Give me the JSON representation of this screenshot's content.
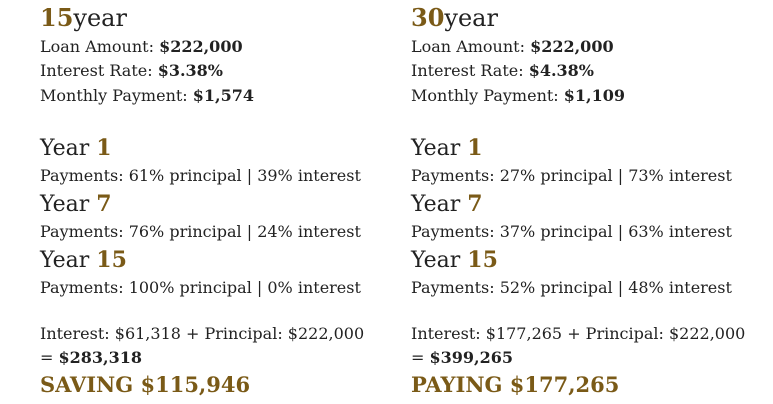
{
  "colors": {
    "accent": "#7a5a17",
    "text": "#222222"
  },
  "left": {
    "term_number": "15",
    "term_unit": "year",
    "loan_amount_label": "Loan Amount:",
    "loan_amount": "$222,000",
    "interest_rate_label": "Interest Rate:",
    "interest_rate": "$3.38%",
    "monthly_payment_label": "Monthly Payment:",
    "monthly_payment": "$1,574",
    "years": [
      {
        "label": "Year",
        "number": "1",
        "payments": "Payments: 61% principal | 39% interest"
      },
      {
        "label": "Year",
        "number": "7",
        "payments": "Payments: 76% principal | 24% interest"
      },
      {
        "label": "Year",
        "number": "15",
        "payments": "Payments: 100% principal | 0% interest"
      }
    ],
    "totals_line": "Interest: $61,318 + Principal: $222,000",
    "total_prefix": "=",
    "total_value": "$283,318",
    "result": "SAVING $115,946"
  },
  "right": {
    "term_number": "30",
    "term_unit": "year",
    "loan_amount_label": "Loan Amount:",
    "loan_amount": "$222,000",
    "interest_rate_label": "Interest Rate:",
    "interest_rate": "$4.38%",
    "monthly_payment_label": "Monthly Payment:",
    "monthly_payment": "$1,109",
    "years": [
      {
        "label": "Year",
        "number": "1",
        "payments": "Payments: 27% principal | 73% interest"
      },
      {
        "label": "Year",
        "number": "7",
        "payments": "Payments: 37% principal | 63% interest"
      },
      {
        "label": "Year",
        "number": "15",
        "payments": "Payments: 52% principal | 48% interest"
      }
    ],
    "totals_line": "Interest: $177,265 + Principal: $222,000",
    "total_prefix": "=",
    "total_value": "$399,265",
    "result": "PAYING $177,265"
  }
}
